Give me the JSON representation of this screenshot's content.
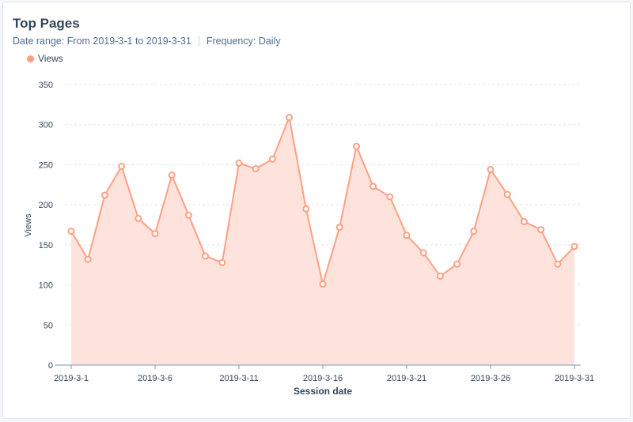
{
  "header": {
    "title": "Top Pages",
    "date_range": "Date range: From 2019-3-1 to 2019-3-31",
    "frequency": "Frequency: Daily"
  },
  "colors": {
    "series": "#ff9f84",
    "fill": "#fee3dc"
  },
  "chart_data": {
    "type": "area",
    "title": "Top Pages",
    "xlabel": "Session date",
    "ylabel": "Views",
    "ylim": [
      0,
      350
    ],
    "yticks": [
      0,
      50,
      100,
      150,
      200,
      250,
      300,
      350
    ],
    "xtick_labels": [
      "2019-3-1",
      "2019-3-6",
      "2019-3-11",
      "2019-3-16",
      "2019-3-21",
      "2019-3-26",
      "2019-3-31"
    ],
    "legend": [
      "Views"
    ],
    "legend_position": "top-left",
    "grid": true,
    "series": [
      {
        "name": "Views",
        "values": [
          167,
          132,
          212,
          248,
          183,
          164,
          237,
          187,
          136,
          128,
          252,
          245,
          257,
          309,
          195,
          101,
          172,
          273,
          223,
          210,
          162,
          140,
          111,
          126,
          167,
          244,
          213,
          179,
          169,
          126,
          148
        ]
      }
    ]
  }
}
